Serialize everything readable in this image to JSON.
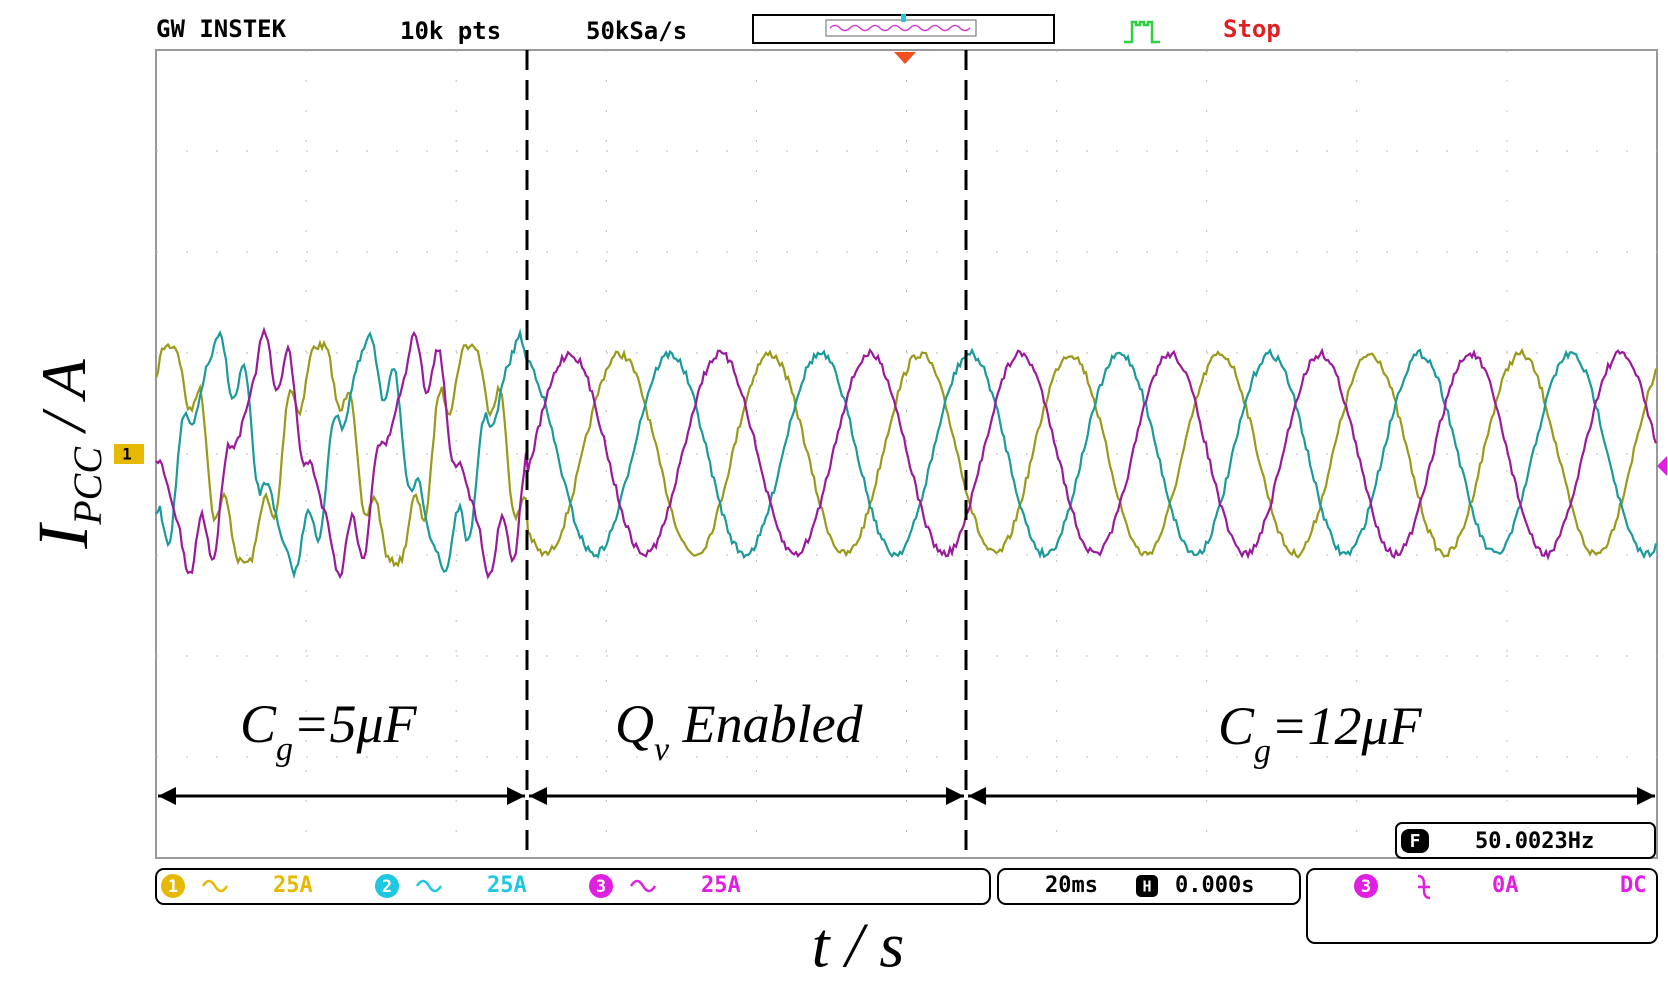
{
  "header": {
    "brand": "GW INSTEK",
    "memory": "10k pts",
    "sample_rate": "50kSa/s",
    "status": "Stop"
  },
  "channels": [
    {
      "number": "1",
      "scale": "25A",
      "color": "#e6b800"
    },
    {
      "number": "2",
      "scale": "25A",
      "color": "#1ec8e0"
    },
    {
      "number": "3",
      "scale": "25A",
      "color": "#e020e0"
    }
  ],
  "timebase": {
    "scale": "20ms",
    "position": "0.000s"
  },
  "trigger": {
    "source": "3",
    "level": "0A",
    "coupling": "DC"
  },
  "frequency": {
    "label": "F",
    "value": "50.0023Hz"
  },
  "annotations": [
    {
      "symbol": "C",
      "subscript": "g",
      "text": "=5μF"
    },
    {
      "symbol": "Q",
      "subscript": "v",
      "text": " Enabled"
    },
    {
      "symbol": "C",
      "subscript": "g",
      "text": "=12μF"
    }
  ],
  "axes": {
    "y_label": {
      "main": "I",
      "subscript": "PCC",
      "rest": " / A"
    },
    "x_label": "t / s"
  },
  "ground_marker": "1"
}
